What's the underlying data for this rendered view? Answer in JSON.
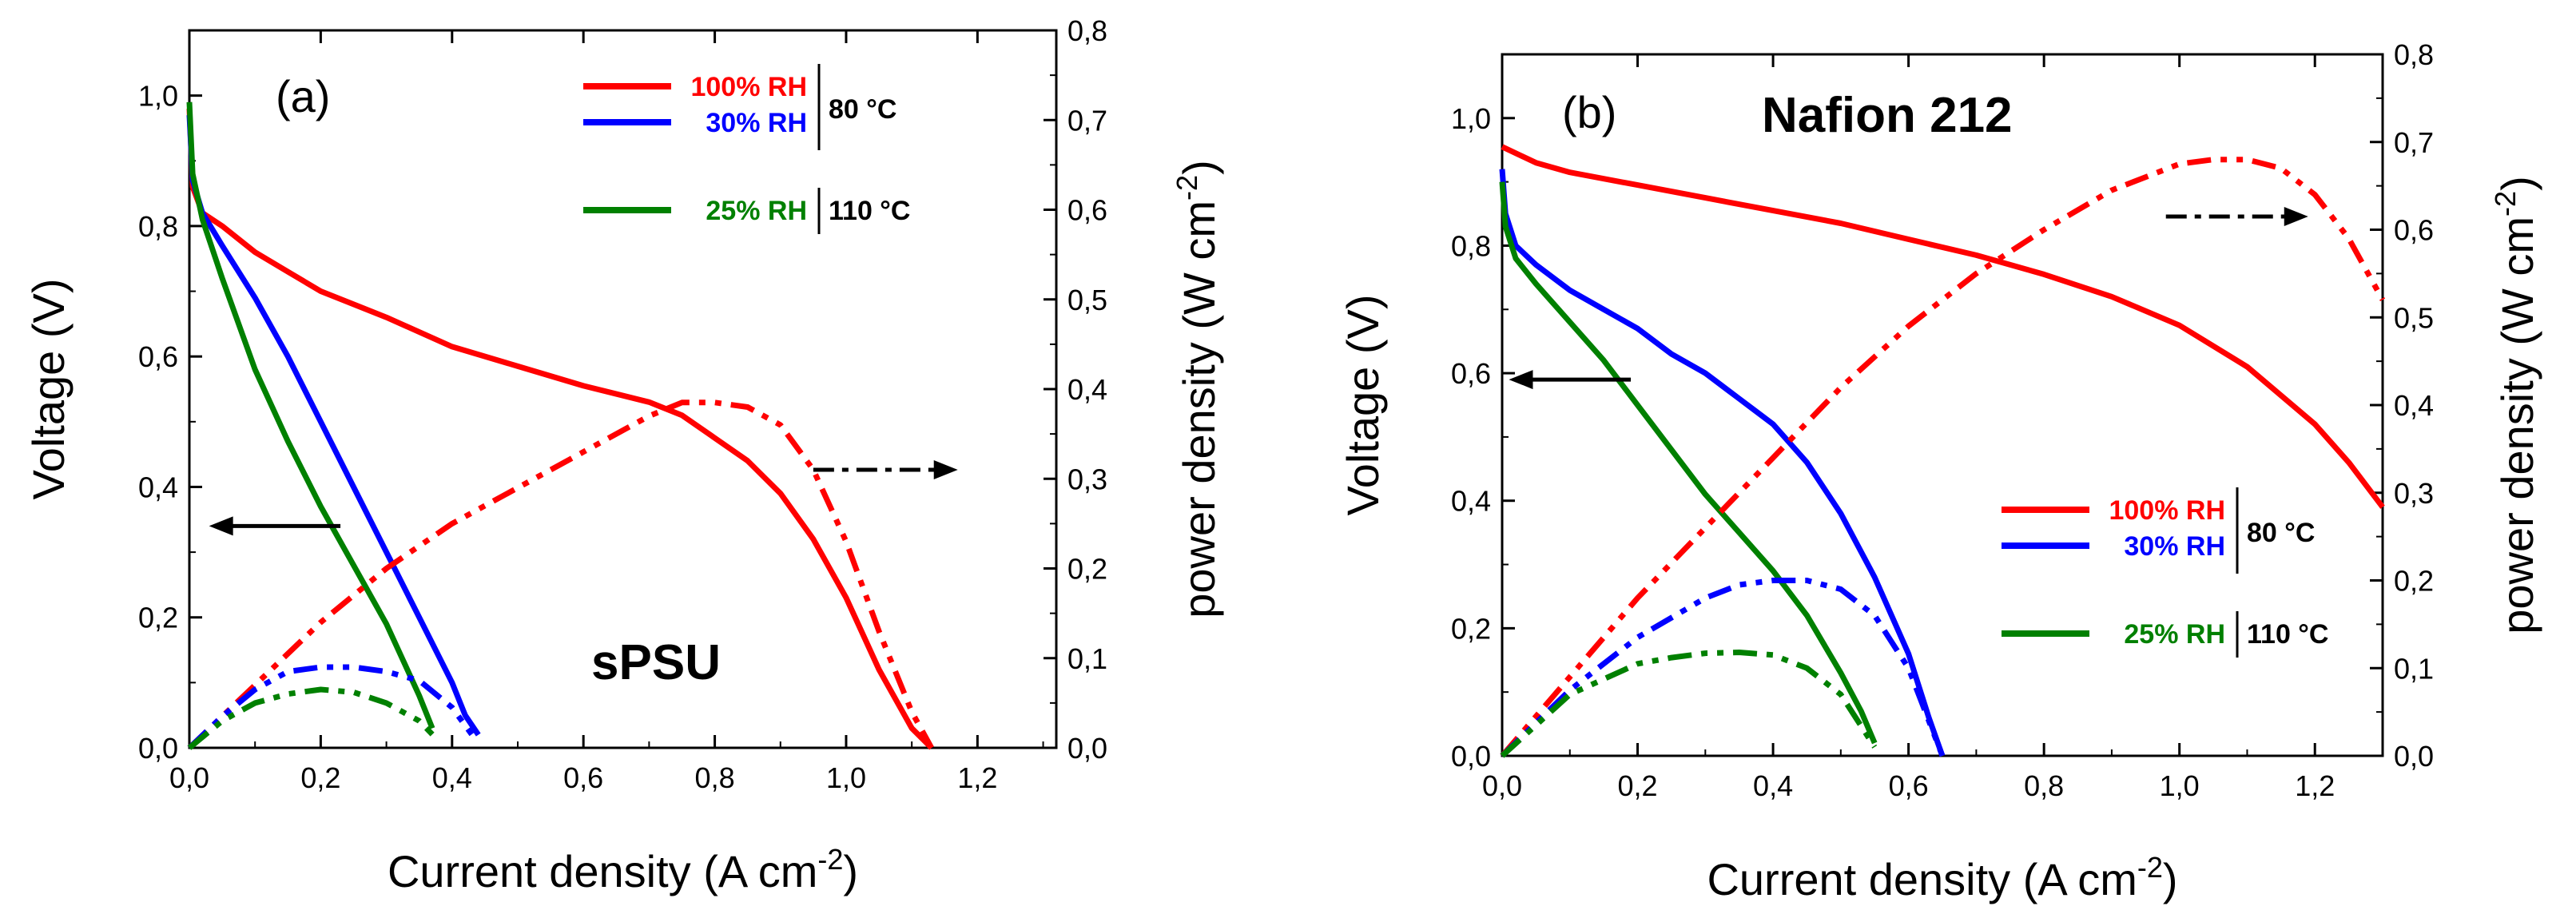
{
  "chart_data": [
    {
      "type": "line",
      "panel_label": "(a)",
      "title": "",
      "annotation": "sPSU",
      "xlabel": "Current density (A cm",
      "xlabel_sup": "-2",
      "xlabel_end": ")",
      "ylabel": "Voltage (V)",
      "y2label": "power density (W cm",
      "y2label_sup": "-2",
      "y2label_end": ")",
      "xlim": [
        0,
        1.32
      ],
      "ylim": [
        0,
        1.1
      ],
      "y2lim": [
        0,
        0.8
      ],
      "xticks": [
        "0,0",
        "0,2",
        "0,4",
        "0,6",
        "0,8",
        "1,0",
        "1,2"
      ],
      "xtick_values": [
        0,
        0.2,
        0.4,
        0.6,
        0.8,
        1.0,
        1.2
      ],
      "yticks": [
        "0,0",
        "0,2",
        "0,4",
        "0,6",
        "0,8",
        "1,0"
      ],
      "ytick_values": [
        0,
        0.2,
        0.4,
        0.6,
        0.8,
        1.0
      ],
      "y2ticks": [
        "0,0",
        "0,1",
        "0,2",
        "0,3",
        "0,4",
        "0,5",
        "0,6",
        "0,7",
        "0,8"
      ],
      "y2tick_values": [
        0,
        0.1,
        0.2,
        0.3,
        0.4,
        0.5,
        0.6,
        0.7,
        0.8
      ],
      "legend": [
        {
          "label": "100% RH",
          "color": "#ff0000"
        },
        {
          "label": "30% RH",
          "color": "#0000ff"
        },
        {
          "label": "25% RH",
          "color": "#008000"
        }
      ],
      "legend_groups": [
        "80 °C",
        "110 °C"
      ],
      "series": [
        {
          "name": "100% RH",
          "kind": "voltage",
          "color": "#ff0000",
          "x": [
            0,
            0.005,
            0.02,
            0.05,
            0.1,
            0.15,
            0.2,
            0.3,
            0.4,
            0.5,
            0.6,
            0.7,
            0.75,
            0.8,
            0.85,
            0.9,
            0.95,
            1.0,
            1.05,
            1.1,
            1.13
          ],
          "y": [
            0.98,
            0.86,
            0.82,
            0.8,
            0.76,
            0.73,
            0.7,
            0.66,
            0.615,
            0.585,
            0.555,
            0.53,
            0.51,
            0.475,
            0.44,
            0.39,
            0.32,
            0.23,
            0.12,
            0.03,
            0.0
          ]
        },
        {
          "name": "30% RH",
          "kind": "voltage",
          "color": "#0000ff",
          "x": [
            0,
            0.005,
            0.02,
            0.05,
            0.1,
            0.15,
            0.2,
            0.25,
            0.3,
            0.35,
            0.4,
            0.42,
            0.44
          ],
          "y": [
            0.97,
            0.87,
            0.82,
            0.77,
            0.69,
            0.6,
            0.5,
            0.4,
            0.3,
            0.2,
            0.1,
            0.05,
            0.02
          ]
        },
        {
          "name": "25% RH",
          "kind": "voltage",
          "color": "#008000",
          "x": [
            0,
            0.005,
            0.02,
            0.05,
            0.1,
            0.15,
            0.2,
            0.25,
            0.3,
            0.35,
            0.37
          ],
          "y": [
            0.99,
            0.88,
            0.81,
            0.72,
            0.58,
            0.47,
            0.37,
            0.28,
            0.19,
            0.08,
            0.03
          ]
        },
        {
          "name": "100% RH",
          "kind": "power",
          "color": "#ff0000",
          "x": [
            0,
            0.1,
            0.2,
            0.3,
            0.4,
            0.5,
            0.6,
            0.7,
            0.75,
            0.8,
            0.85,
            0.9,
            0.95,
            1.0,
            1.05,
            1.1,
            1.13
          ],
          "y": [
            0.0,
            0.07,
            0.14,
            0.2,
            0.25,
            0.29,
            0.33,
            0.37,
            0.385,
            0.385,
            0.38,
            0.36,
            0.31,
            0.23,
            0.13,
            0.04,
            0.0
          ]
        },
        {
          "name": "30% RH",
          "kind": "power",
          "color": "#0000ff",
          "x": [
            0,
            0.05,
            0.1,
            0.15,
            0.2,
            0.25,
            0.3,
            0.35,
            0.4,
            0.43
          ],
          "y": [
            0.0,
            0.035,
            0.065,
            0.085,
            0.09,
            0.09,
            0.085,
            0.075,
            0.045,
            0.015
          ]
        },
        {
          "name": "25% RH",
          "kind": "power",
          "color": "#008000",
          "x": [
            0,
            0.05,
            0.1,
            0.15,
            0.2,
            0.25,
            0.3,
            0.35,
            0.37
          ],
          "y": [
            0.0,
            0.03,
            0.05,
            0.06,
            0.065,
            0.062,
            0.05,
            0.03,
            0.015
          ]
        }
      ],
      "arrows": [
        {
          "direction": "left",
          "axis": "voltage",
          "x_from": 0.23,
          "x_to": 0.03,
          "y": 0.34
        },
        {
          "direction": "right",
          "axis": "power",
          "x_from": 0.95,
          "x_to": 1.17,
          "y": 0.31
        }
      ]
    },
    {
      "type": "line",
      "panel_label": "(b)",
      "title": "Nafion 212",
      "annotation": "",
      "xlabel": "Current density (A cm",
      "xlabel_sup": "-2",
      "xlabel_end": ")",
      "ylabel": "Voltage (V)",
      "y2label": "power density (W cm",
      "y2label_sup": "-2",
      "y2label_end": ")",
      "xlim": [
        0,
        1.3
      ],
      "ylim": [
        0,
        1.1
      ],
      "y2lim": [
        0,
        0.8
      ],
      "xticks": [
        "0,0",
        "0,2",
        "0,4",
        "0,6",
        "0,8",
        "1,0",
        "1,2"
      ],
      "xtick_values": [
        0,
        0.2,
        0.4,
        0.6,
        0.8,
        1.0,
        1.2
      ],
      "yticks": [
        "0,0",
        "0,2",
        "0,4",
        "0,6",
        "0,8",
        "1,0"
      ],
      "ytick_values": [
        0,
        0.2,
        0.4,
        0.6,
        0.8,
        1.0
      ],
      "y2ticks": [
        "0,0",
        "0,1",
        "0,2",
        "0,3",
        "0,4",
        "0,5",
        "0,6",
        "0,7",
        "0,8"
      ],
      "y2tick_values": [
        0,
        0.1,
        0.2,
        0.3,
        0.4,
        0.5,
        0.6,
        0.7,
        0.8
      ],
      "legend": [
        {
          "label": "100% RH",
          "color": "#ff0000"
        },
        {
          "label": "30% RH",
          "color": "#0000ff"
        },
        {
          "label": "25% RH",
          "color": "#008000"
        }
      ],
      "legend_groups": [
        "80 °C",
        "110 °C"
      ],
      "series": [
        {
          "name": "100% RH",
          "kind": "voltage",
          "color": "#ff0000",
          "x": [
            0,
            0.05,
            0.1,
            0.2,
            0.3,
            0.4,
            0.5,
            0.6,
            0.7,
            0.8,
            0.9,
            1.0,
            1.1,
            1.2,
            1.25,
            1.3
          ],
          "y": [
            0.955,
            0.93,
            0.915,
            0.895,
            0.875,
            0.855,
            0.835,
            0.81,
            0.785,
            0.755,
            0.72,
            0.675,
            0.61,
            0.52,
            0.46,
            0.39
          ]
        },
        {
          "name": "30% RH",
          "kind": "voltage",
          "color": "#0000ff",
          "x": [
            0,
            0.005,
            0.02,
            0.05,
            0.1,
            0.15,
            0.2,
            0.25,
            0.3,
            0.35,
            0.4,
            0.45,
            0.5,
            0.55,
            0.6,
            0.63,
            0.65
          ],
          "y": [
            0.92,
            0.85,
            0.8,
            0.77,
            0.73,
            0.7,
            0.67,
            0.63,
            0.6,
            0.56,
            0.52,
            0.46,
            0.38,
            0.28,
            0.16,
            0.06,
            0.0
          ]
        },
        {
          "name": "25% RH",
          "kind": "voltage",
          "color": "#008000",
          "x": [
            0,
            0.005,
            0.02,
            0.05,
            0.1,
            0.15,
            0.2,
            0.25,
            0.3,
            0.35,
            0.4,
            0.45,
            0.5,
            0.53,
            0.55
          ],
          "y": [
            0.9,
            0.83,
            0.78,
            0.74,
            0.68,
            0.62,
            0.55,
            0.48,
            0.41,
            0.35,
            0.29,
            0.22,
            0.13,
            0.07,
            0.02
          ]
        },
        {
          "name": "100% RH",
          "kind": "power",
          "color": "#ff0000",
          "x": [
            0,
            0.1,
            0.2,
            0.3,
            0.4,
            0.5,
            0.6,
            0.7,
            0.8,
            0.9,
            1.0,
            1.05,
            1.1,
            1.15,
            1.2,
            1.25,
            1.3
          ],
          "y": [
            0.0,
            0.09,
            0.18,
            0.26,
            0.34,
            0.42,
            0.49,
            0.55,
            0.6,
            0.645,
            0.675,
            0.68,
            0.68,
            0.67,
            0.64,
            0.59,
            0.52
          ]
        },
        {
          "name": "30% RH",
          "kind": "power",
          "color": "#0000ff",
          "x": [
            0,
            0.1,
            0.2,
            0.3,
            0.35,
            0.4,
            0.45,
            0.5,
            0.55,
            0.6,
            0.63,
            0.65
          ],
          "y": [
            0.0,
            0.075,
            0.135,
            0.18,
            0.195,
            0.2,
            0.2,
            0.19,
            0.16,
            0.1,
            0.04,
            0.0
          ]
        },
        {
          "name": "25% RH",
          "kind": "power",
          "color": "#008000",
          "x": [
            0,
            0.1,
            0.2,
            0.25,
            0.3,
            0.35,
            0.4,
            0.45,
            0.5,
            0.55
          ],
          "y": [
            0.0,
            0.07,
            0.105,
            0.112,
            0.117,
            0.118,
            0.115,
            0.1,
            0.07,
            0.01
          ]
        }
      ],
      "arrows": [
        {
          "direction": "left",
          "axis": "voltage",
          "x_from": 0.19,
          "x_to": 0.01,
          "y": 0.59
        },
        {
          "direction": "right",
          "axis": "power",
          "x_from": 0.98,
          "x_to": 1.19,
          "y": 0.615
        }
      ]
    }
  ]
}
